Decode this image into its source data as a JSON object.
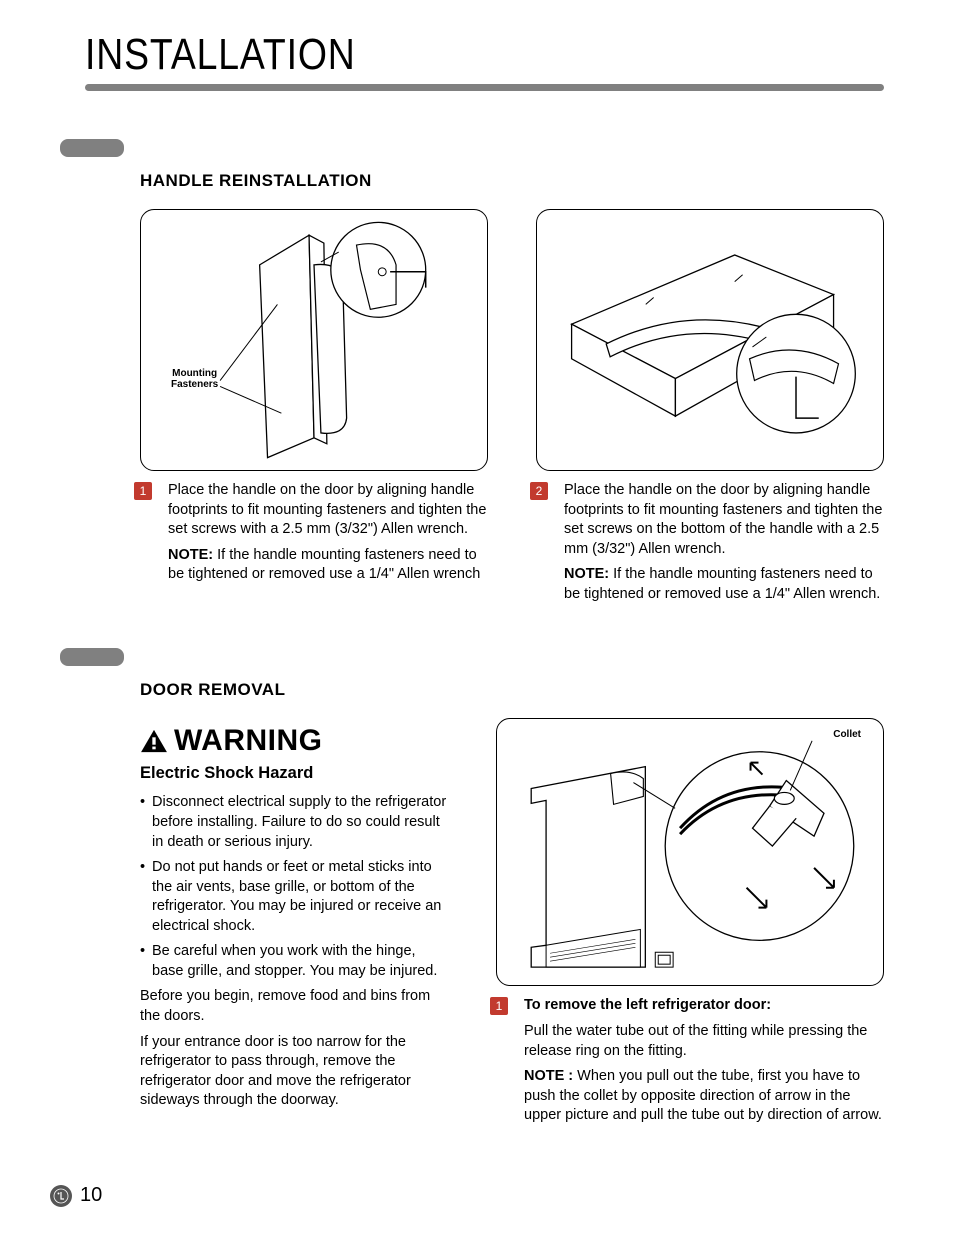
{
  "page": {
    "title": "INSTALLATION",
    "number": "10"
  },
  "colors": {
    "rule": "#808080",
    "tab": "#808080",
    "step_badge": "#c23a2e",
    "text": "#000000",
    "bg": "#ffffff"
  },
  "section1": {
    "heading": "HANDLE REINSTALLATION",
    "fig1_label": "Mounting\nFasteners",
    "step1": {
      "num": "1",
      "text": "Place the handle on the door by aligning handle footprints to fit mounting fasteners and tighten the set screws with a 2.5 mm (3/32\") Allen wrench.",
      "note_label": "NOTE:",
      "note_text": " If the handle mounting fasteners need to be tightened or removed use a 1/4\" Allen wrench"
    },
    "step2": {
      "num": "2",
      "text": "Place the handle on the door by aligning handle footprints to fit mounting fasteners and tighten the set screws on the bottom of the handle with a 2.5 mm (3/32\") Allen wrench.",
      "note_label": "NOTE:",
      "note_text": " If the handle mounting fasteners need to be tightened or removed use a 1/4\" Allen wrench."
    }
  },
  "section2": {
    "heading": "DOOR REMOVAL",
    "warning_word": "WARNING",
    "subhead": "Electric Shock Hazard",
    "bullets": [
      "Disconnect electrical supply to the refrigerator before installing. Failure to do so could result in death or serious injury.",
      "Do not put hands or feet or metal sticks into the air vents, base grille, or bottom of the refrigerator. You may be injured or receive an electrical shock.",
      "Be careful when you work with the hinge, base grille, and stopper. You may be injured."
    ],
    "para1": "Before you begin, remove food and bins from the doors.",
    "para2": "If your entrance door is too narrow for the refrigerator to pass through, remove the refrigerator door and move the refrigerator sideways through the doorway.",
    "fig_label": "Collet",
    "step1": {
      "num": "1",
      "title": "To remove the left refrigerator door:",
      "text": "Pull the water tube out of the fitting while pressing the release ring on the fitting.",
      "note_label": "NOTE :",
      "note_text": " When you pull out the tube, first you have to push the collet by opposite direction of arrow in the upper picture and pull the tube out by direction of arrow."
    }
  }
}
